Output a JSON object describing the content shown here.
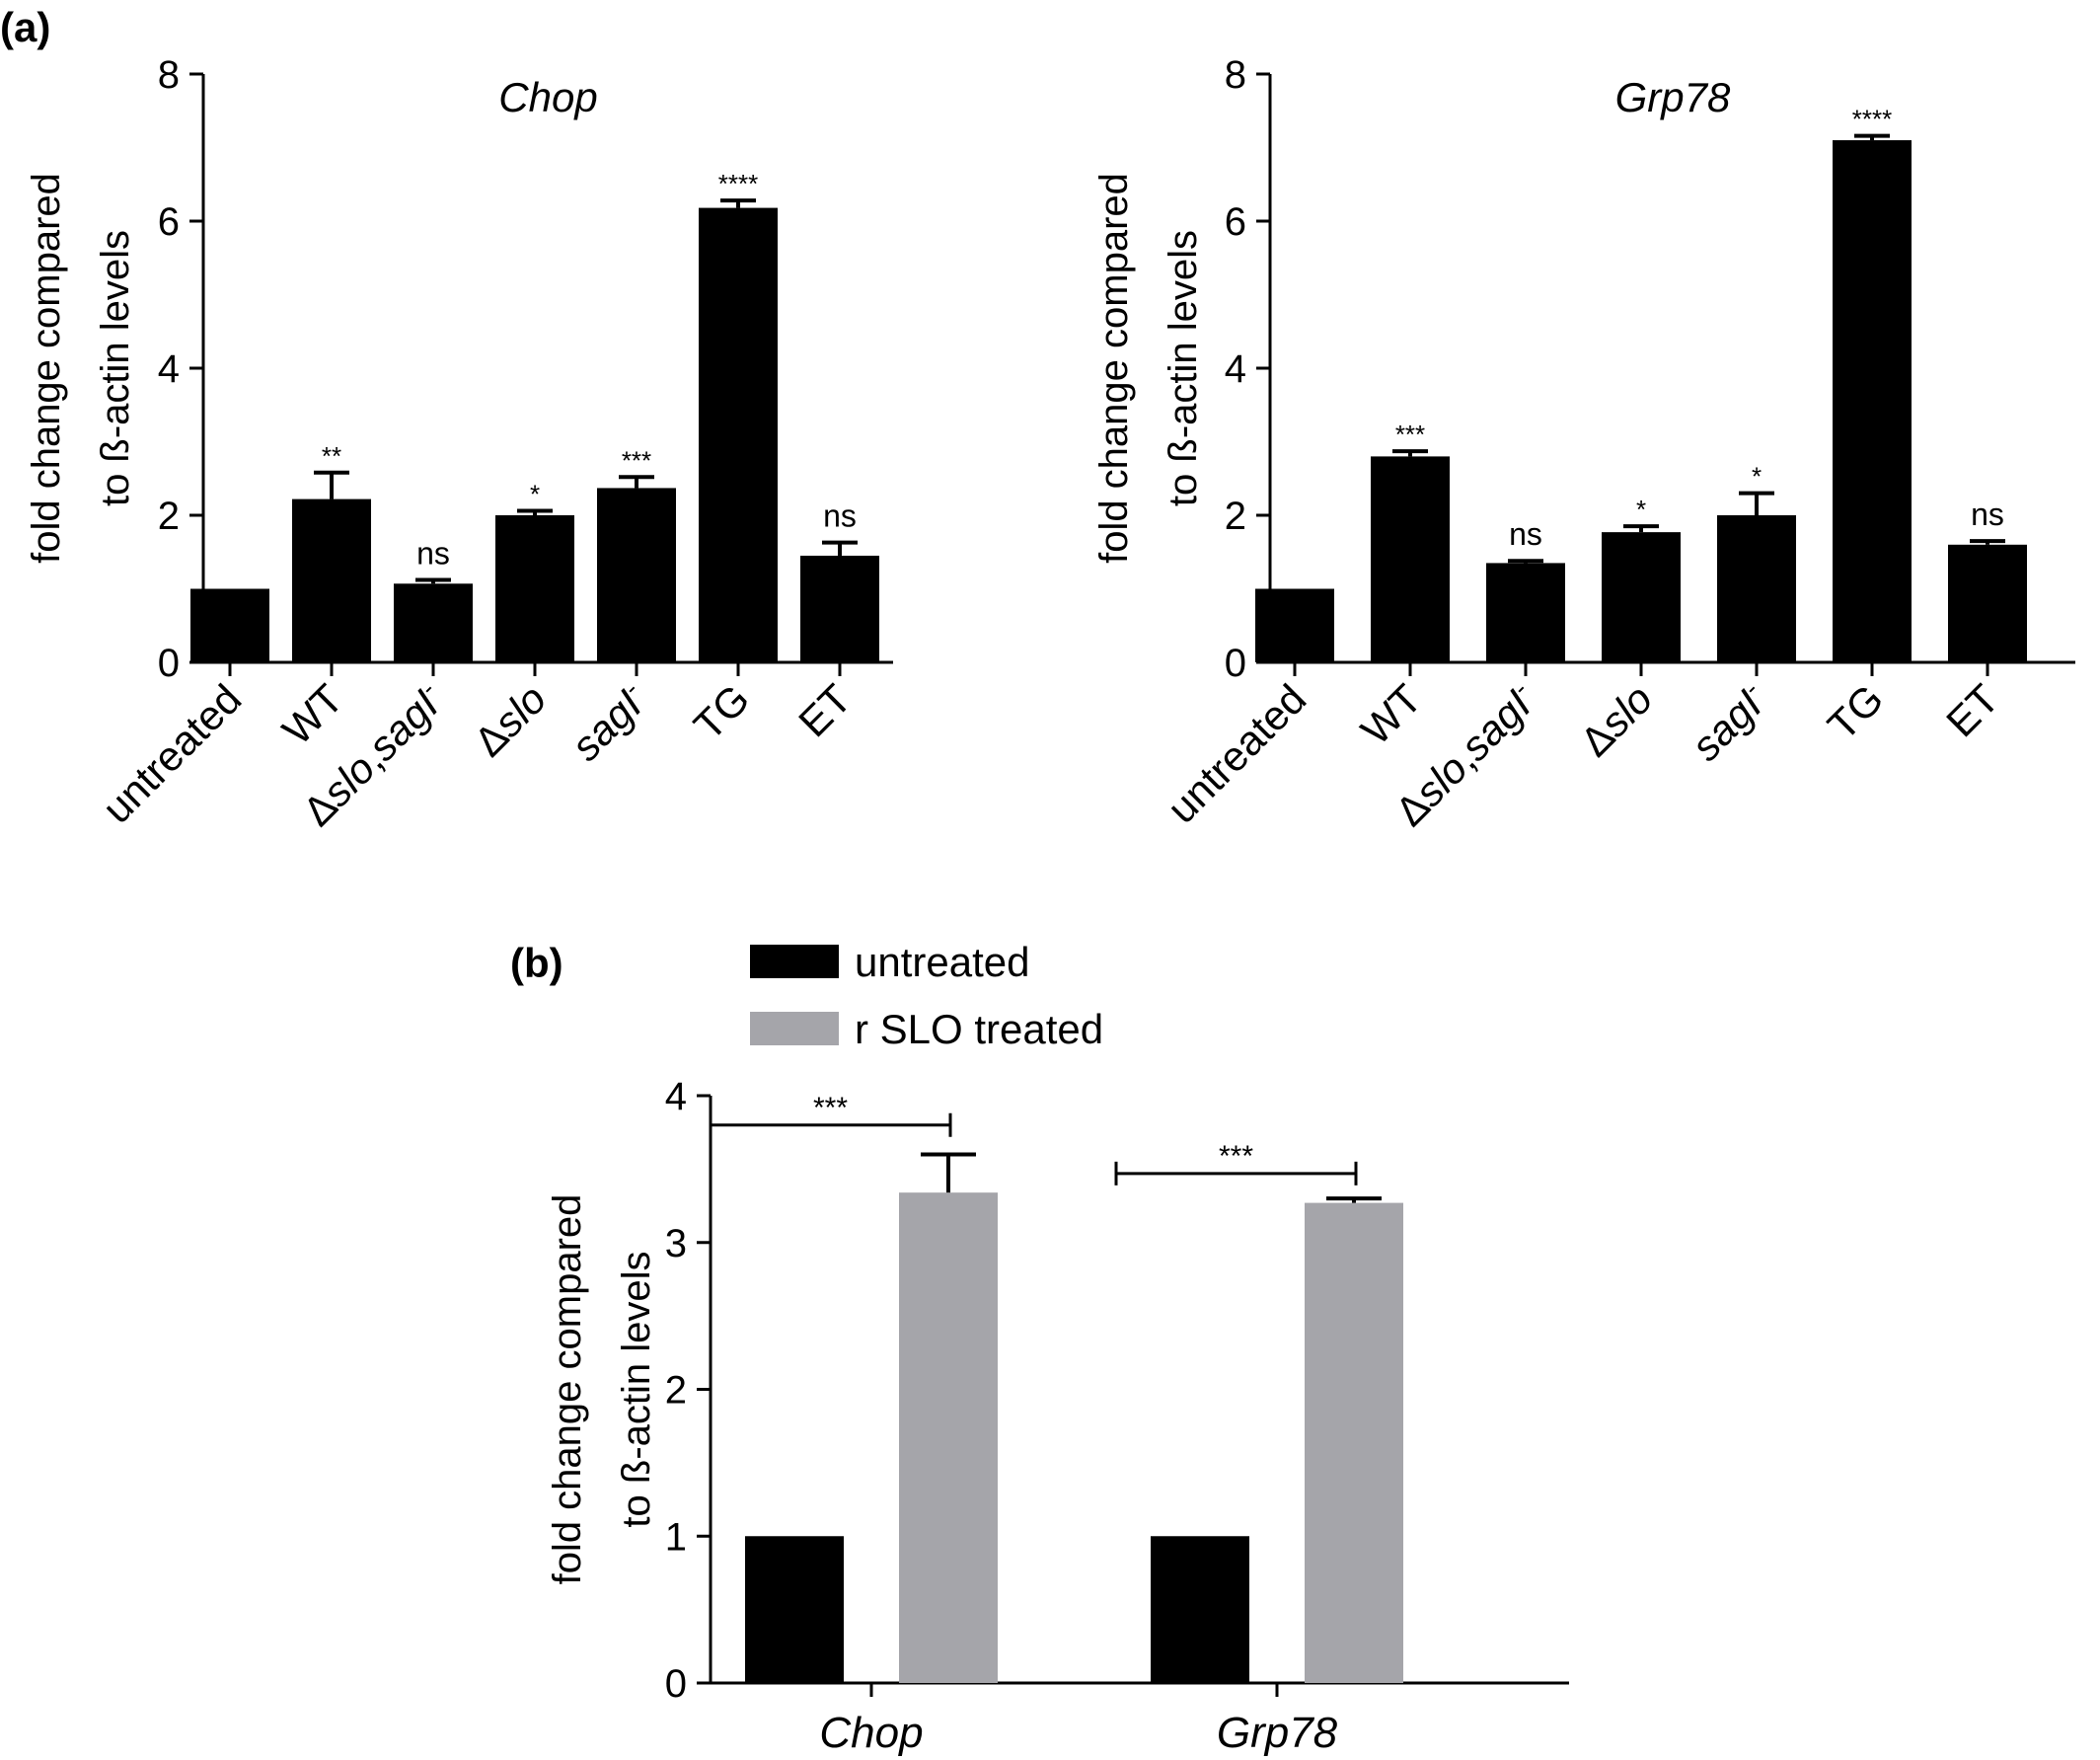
{
  "panel_labels": {
    "a": "(a)",
    "b": "(b)"
  },
  "colors": {
    "bar_black": "#000000",
    "bar_gray": "#a5a5aa",
    "axis": "#000000"
  },
  "chart_data": [
    {
      "id": "chop",
      "panel": "a",
      "type": "bar",
      "title": "Chop",
      "title_style": "italic",
      "ylabel": [
        "fold change compared",
        "to ß-actin levels"
      ],
      "xlabel": "",
      "ylim": [
        0,
        8
      ],
      "yticks": [
        0,
        2,
        4,
        6,
        8
      ],
      "grid": false,
      "categories": [
        {
          "parts": [
            {
              "text": "untreated"
            }
          ]
        },
        {
          "parts": [
            {
              "text": "WT"
            }
          ]
        },
        {
          "parts": [
            {
              "text": "Δ"
            },
            {
              "text": "slo",
              "italic": true
            },
            {
              "text": ","
            },
            {
              "text": "sagI",
              "italic": true
            },
            {
              "text": "-",
              "sup": true
            }
          ]
        },
        {
          "parts": [
            {
              "text": "Δ"
            },
            {
              "text": "slo",
              "italic": true
            }
          ]
        },
        {
          "parts": [
            {
              "text": "sagI",
              "italic": true
            },
            {
              "text": "-",
              "sup": true
            }
          ]
        },
        {
          "parts": [
            {
              "text": "TG"
            }
          ]
        },
        {
          "parts": [
            {
              "text": "ET"
            }
          ]
        }
      ],
      "values": [
        1.0,
        2.22,
        1.07,
        2.0,
        2.37,
        6.18,
        1.45
      ],
      "errors": [
        0,
        0.36,
        0.05,
        0.06,
        0.15,
        0.1,
        0.18
      ],
      "significance": [
        "",
        "**",
        "ns",
        "*",
        "***",
        "****",
        "ns"
      ]
    },
    {
      "id": "grp78",
      "panel": "a",
      "type": "bar",
      "title": "Grp78",
      "title_style": "italic",
      "ylabel": [
        "fold change compared",
        "to ß-actin levels"
      ],
      "xlabel": "",
      "ylim": [
        0,
        8
      ],
      "yticks": [
        0,
        2,
        4,
        6,
        8
      ],
      "grid": false,
      "categories": [
        {
          "parts": [
            {
              "text": "untreated"
            }
          ]
        },
        {
          "parts": [
            {
              "text": "WT"
            }
          ]
        },
        {
          "parts": [
            {
              "text": "Δ"
            },
            {
              "text": "slo",
              "italic": true
            },
            {
              "text": ","
            },
            {
              "text": "sagI",
              "italic": true
            },
            {
              "text": "-",
              "sup": true
            }
          ]
        },
        {
          "parts": [
            {
              "text": "Δ"
            },
            {
              "text": "slo",
              "italic": true
            }
          ]
        },
        {
          "parts": [
            {
              "text": "sagI",
              "italic": true
            },
            {
              "text": "-",
              "sup": true
            }
          ]
        },
        {
          "parts": [
            {
              "text": "TG"
            }
          ]
        },
        {
          "parts": [
            {
              "text": "ET"
            }
          ]
        }
      ],
      "values": [
        1.0,
        2.8,
        1.35,
        1.77,
        2.0,
        7.1,
        1.6
      ],
      "errors": [
        0,
        0.07,
        0.03,
        0.08,
        0.3,
        0.06,
        0.05
      ],
      "significance": [
        "",
        "***",
        "ns",
        "*",
        "*",
        "****",
        "ns"
      ]
    },
    {
      "id": "slo",
      "panel": "b",
      "type": "bar",
      "title": "",
      "ylabel": [
        "fold change compared",
        "to ß-actin levels"
      ],
      "xlabel": "",
      "ylim": [
        0,
        4
      ],
      "yticks": [
        0,
        1,
        2,
        3,
        4
      ],
      "grid": false,
      "legend_position": "top-left",
      "categories": [
        "Chop",
        "Grp78"
      ],
      "category_style": "italic",
      "series": [
        {
          "name": "untreated",
          "color": "#000000",
          "values": [
            1.0,
            1.0
          ],
          "errors": [
            0,
            0
          ]
        },
        {
          "name": "r SLO treated",
          "color": "#a5a5aa",
          "values": [
            3.34,
            3.27
          ],
          "errors": [
            0.26,
            0.03
          ]
        }
      ],
      "comparisons": [
        {
          "category": 0,
          "label": "***",
          "value": 3.8
        },
        {
          "category": 1,
          "label": "***",
          "value": 3.47
        }
      ]
    }
  ]
}
